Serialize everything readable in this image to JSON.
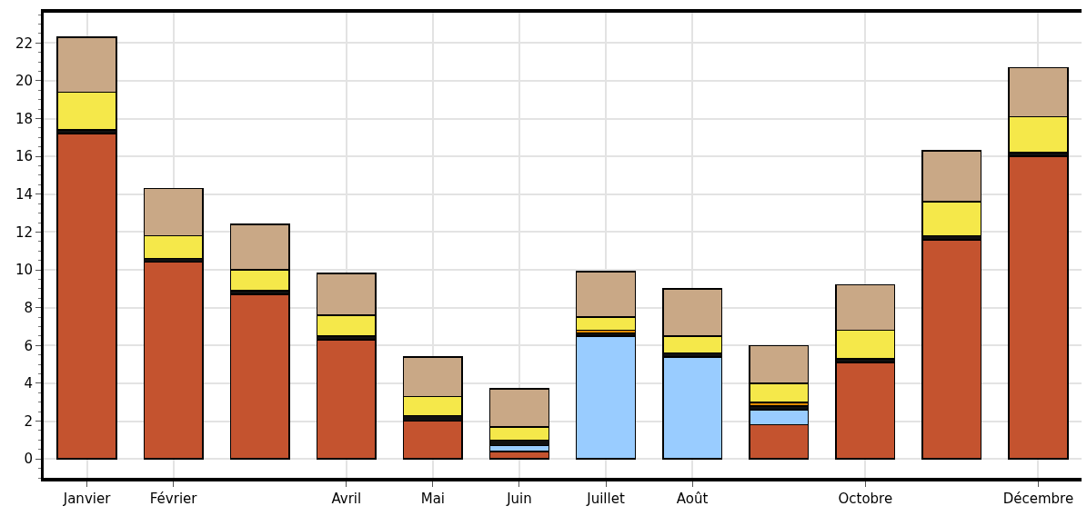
{
  "chart_data": {
    "type": "bar",
    "stacked": true,
    "categories": [
      "Janvier",
      "Février",
      null,
      "Avril",
      "Mai",
      "Juin",
      "Juillet",
      "Août",
      null,
      "Octobre",
      null,
      "Décembre"
    ],
    "series": [
      {
        "color": "#c4532f",
        "values": [
          17.2,
          10.4,
          8.7,
          6.3,
          2.0,
          0.4,
          null,
          null,
          1.8,
          5.1,
          11.6,
          16.0
        ]
      },
      {
        "color": "#99ccff",
        "values": [
          null,
          null,
          null,
          null,
          null,
          0.3,
          6.5,
          5.4,
          0.8,
          null,
          null,
          null
        ]
      },
      {
        "color": "#111111",
        "values": [
          0.2,
          0.2,
          0.2,
          0.2,
          0.3,
          0.3,
          0.15,
          0.2,
          0.2,
          0.2,
          0.2,
          0.2
        ]
      },
      {
        "color": "#e08a00",
        "values": [
          null,
          null,
          null,
          null,
          null,
          null,
          0.15,
          null,
          0.2,
          null,
          null,
          null
        ]
      },
      {
        "color": "#f5e84a",
        "values": [
          2.0,
          1.2,
          1.1,
          1.1,
          1.0,
          0.7,
          0.7,
          0.9,
          1.0,
          1.5,
          1.8,
          1.9
        ]
      },
      {
        "color": "#c9a886",
        "values": [
          2.9,
          2.5,
          2.4,
          2.2,
          2.1,
          2.0,
          2.4,
          2.5,
          2.0,
          2.4,
          2.7,
          2.6
        ]
      }
    ],
    "ylim": [
      -1,
      23.6
    ],
    "yticks": [
      0,
      2,
      4,
      6,
      8,
      10,
      12,
      14,
      16,
      18,
      20,
      22
    ],
    "grid": true
  }
}
